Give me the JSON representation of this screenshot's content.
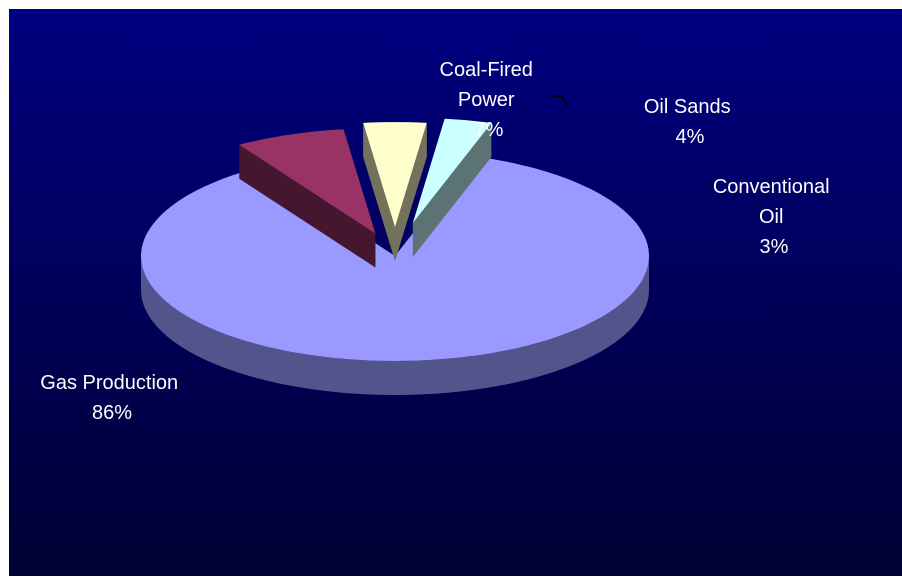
{
  "chart_data": {
    "type": "pie",
    "style": "3d-exploded",
    "title": "",
    "slices": [
      {
        "label": "Gas Production",
        "value": 86,
        "display": "86%",
        "color": "#9999ff"
      },
      {
        "label": "Coal-Fired Power",
        "value": 7,
        "display": "7%",
        "color": "#993366"
      },
      {
        "label": "Oil Sands",
        "value": 4,
        "display": "4%",
        "color": "#ffffcc"
      },
      {
        "label": "Conventional Oil",
        "value": 3,
        "display": "3%",
        "color": "#ccffff"
      }
    ],
    "label_lines": {
      "gas": [
        "Gas Production",
        "86%"
      ],
      "coal": [
        "Coal-Fired",
        "Power",
        "7%"
      ],
      "oil_sands": [
        "Oil Sands",
        "4%"
      ],
      "conventional": [
        "Conventional",
        "Oil",
        "3%"
      ]
    },
    "background": {
      "top": "#000080",
      "bottom": "#000033"
    },
    "legend": "none"
  }
}
